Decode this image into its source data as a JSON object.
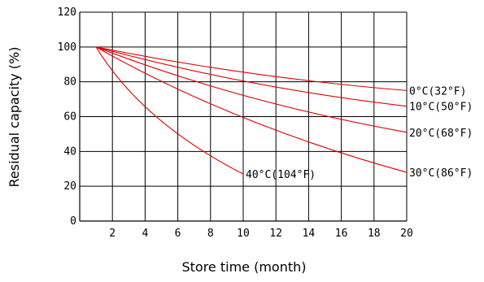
{
  "chart_data": {
    "type": "line",
    "title": "",
    "xlabel": "Store time (month)",
    "ylabel": "Residual capacity (%)",
    "xlim": [
      0,
      20
    ],
    "ylim": [
      0,
      120
    ],
    "x_ticks": [
      "2",
      "4",
      "6",
      "8",
      "10",
      "12",
      "14",
      "16",
      "18",
      "20"
    ],
    "y_ticks": [
      "0",
      "20",
      "40",
      "60",
      "80",
      "100",
      "120"
    ],
    "grid": true,
    "line_color": "#e00000",
    "series": [
      {
        "name": "0°C(32°F)",
        "x": [
          1,
          20
        ],
        "y": [
          100,
          75
        ]
      },
      {
        "name": "10°C(50°F)",
        "x": [
          1,
          20
        ],
        "y": [
          100,
          66
        ]
      },
      {
        "name": "20°C(68°F)",
        "x": [
          1,
          20
        ],
        "y": [
          100,
          51
        ]
      },
      {
        "name": "30°C(86°F)",
        "x": [
          1,
          20
        ],
        "y": [
          100,
          28
        ]
      },
      {
        "name": "40°C(104°F)",
        "x": [
          1,
          10
        ],
        "y": [
          100,
          27
        ]
      }
    ]
  }
}
